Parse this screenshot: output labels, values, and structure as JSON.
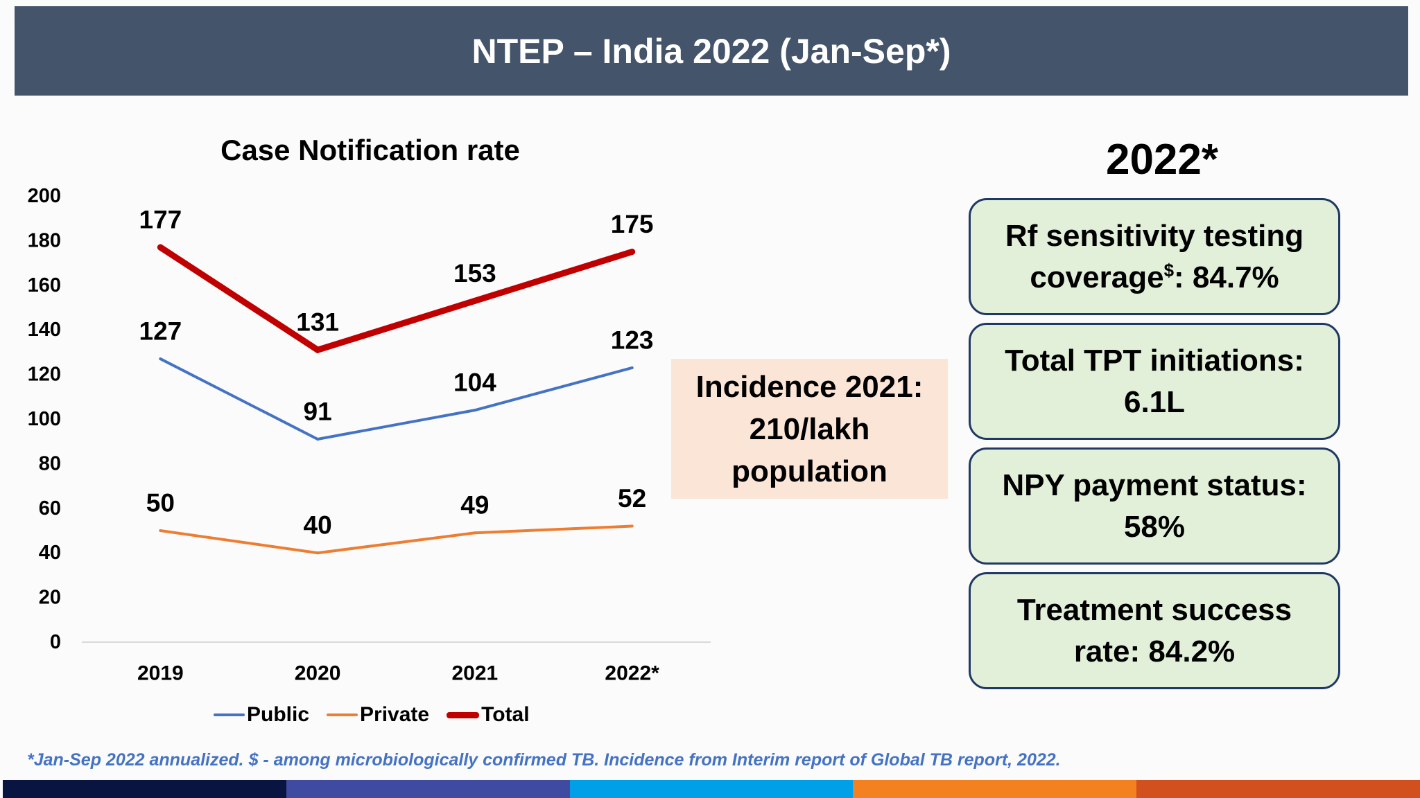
{
  "header": {
    "title": "NTEP – India 2022 (Jan-Sep*)"
  },
  "chart_data": {
    "type": "line",
    "title": "Case Notification rate",
    "categories": [
      "2019",
      "2020",
      "2021",
      "2022*"
    ],
    "series": [
      {
        "name": "Public",
        "color": "#4472C4",
        "values": [
          127,
          91,
          104,
          123
        ]
      },
      {
        "name": "Private",
        "color": "#ED7D31",
        "values": [
          50,
          40,
          49,
          52
        ]
      },
      {
        "name": "Total",
        "color": "#C00000",
        "values": [
          177,
          131,
          153,
          175
        ]
      }
    ],
    "ylim": [
      0,
      200
    ],
    "yticks": [
      0,
      20,
      40,
      60,
      80,
      100,
      120,
      140,
      160,
      180,
      200
    ],
    "data_labels": true,
    "grid": false,
    "legend": "bottom"
  },
  "incidence": {
    "lines": [
      "Incidence 2021:",
      "210/lakh",
      "population"
    ]
  },
  "summary": {
    "heading": "2022*",
    "stats": [
      {
        "line1": "Rf sensitivity testing",
        "line2": "coverage",
        "line2_sup": "$",
        "line2_tail": ": 84.7%"
      },
      {
        "line1": "Total TPT initiations:",
        "line2": "6.1L"
      },
      {
        "line1": "NPY payment status:",
        "line2": "58%"
      },
      {
        "line1": "Treatment success",
        "line2": "rate: 84.2%"
      }
    ]
  },
  "footnote": "*Jan-Sep 2022 annualized. $ - among microbiologically confirmed TB. Incidence from Interim report of Global TB report, 2022.",
  "theme": {
    "header_bg": "#44546A",
    "incidence_bg": "#FBE5D6",
    "stat_bg": "#E2F0D9",
    "stat_border": "#1F3864",
    "footnote_color": "#4472C4"
  },
  "footer_bar": {
    "colors": [
      "#0A1440",
      "#3F4AA1",
      "#00A0E9",
      "#F4811F",
      "#D2501E"
    ]
  }
}
